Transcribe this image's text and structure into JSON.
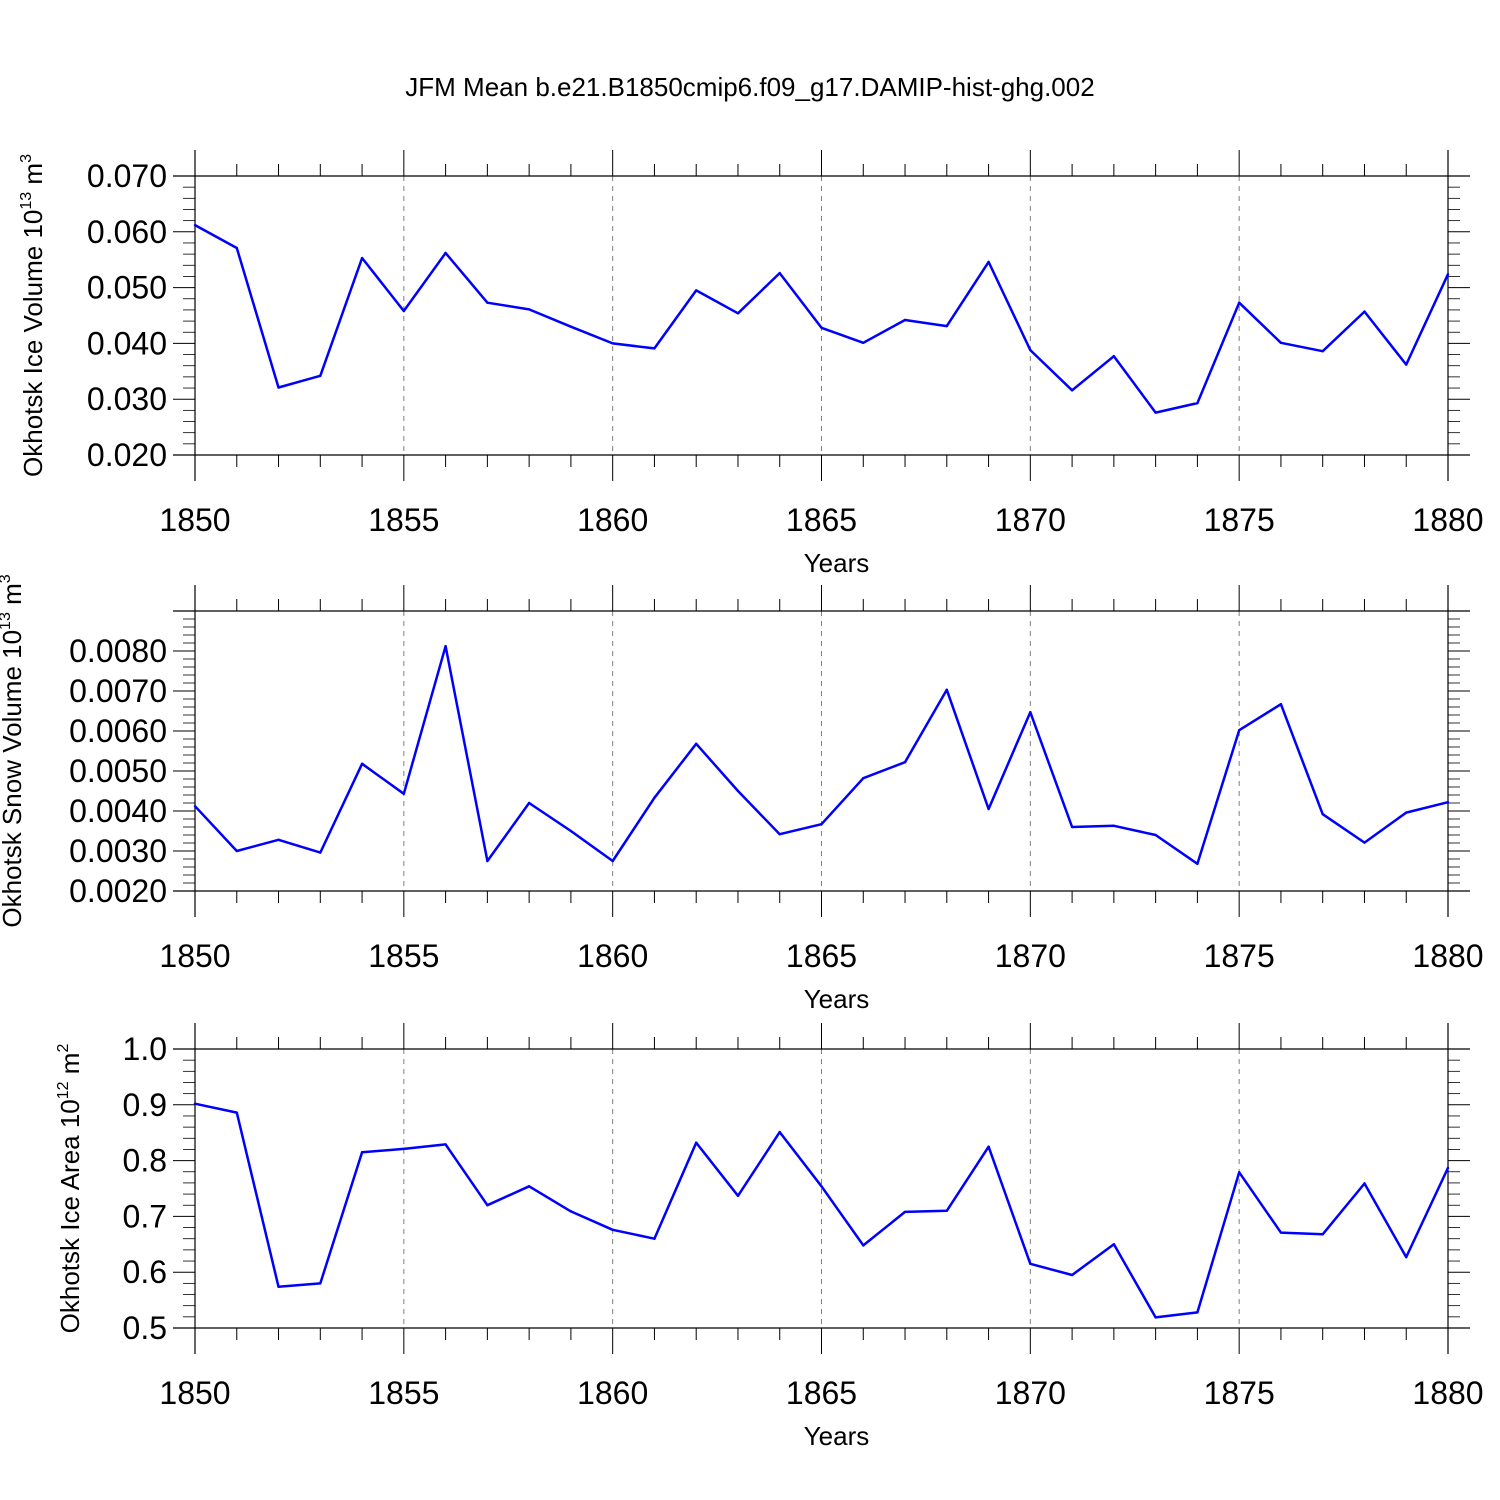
{
  "title": "JFM Mean b.e21.B1850cmip6.f09_g17.DAMIP-hist-ghg.002",
  "colors": {
    "line": "#0000ff",
    "axis": "#000000",
    "grid": "#808080"
  },
  "chart_data": [
    {
      "type": "line",
      "name": "ice-volume",
      "ylabel": {
        "base": "Okhotsk Ice Volume 10",
        "exp": "13",
        "unit": " m",
        "unit_exp": "3"
      },
      "xlabel": "Years",
      "xlim": [
        1850,
        1880
      ],
      "ylim": [
        0.02,
        0.07
      ],
      "xticks": [
        1850,
        1855,
        1860,
        1865,
        1870,
        1875,
        1880
      ],
      "xtick_labels": [
        "1850",
        "1855",
        "1860",
        "1865",
        "1870",
        "1875",
        "1880"
      ],
      "yticks": [
        0.02,
        0.03,
        0.04,
        0.05,
        0.06,
        0.07
      ],
      "ytick_labels": [
        "0.020",
        "0.030",
        "0.040",
        "0.050",
        "0.060",
        "0.070"
      ],
      "x": [
        1850,
        1851,
        1852,
        1853,
        1854,
        1855,
        1856,
        1857,
        1858,
        1859,
        1860,
        1861,
        1862,
        1863,
        1864,
        1865,
        1866,
        1867,
        1868,
        1869,
        1870,
        1871,
        1872,
        1873,
        1874,
        1875,
        1876,
        1877,
        1878,
        1879,
        1880
      ],
      "values": [
        0.0612,
        0.0571,
        0.0321,
        0.0342,
        0.0553,
        0.0458,
        0.0562,
        0.0473,
        0.0461,
        0.043,
        0.04,
        0.0391,
        0.0495,
        0.0454,
        0.0526,
        0.0428,
        0.0401,
        0.0442,
        0.0431,
        0.0546,
        0.0388,
        0.0316,
        0.0377,
        0.0276,
        0.0293,
        0.0473,
        0.0401,
        0.0386,
        0.0457,
        0.0362,
        0.0524
      ]
    },
    {
      "type": "line",
      "name": "snow-volume",
      "ylabel": {
        "base": "Okhotsk Snow Volume 10",
        "exp": "13",
        "unit": " m",
        "unit_exp": "3"
      },
      "xlabel": "Years",
      "xlim": [
        1850,
        1880
      ],
      "ylim": [
        0.002,
        0.009
      ],
      "xticks": [
        1850,
        1855,
        1860,
        1865,
        1870,
        1875,
        1880
      ],
      "xtick_labels": [
        "1850",
        "1855",
        "1860",
        "1865",
        "1870",
        "1875",
        "1880"
      ],
      "yticks": [
        0.002,
        0.003,
        0.004,
        0.005,
        0.006,
        0.007,
        0.008
      ],
      "ytick_labels": [
        "0.0020",
        "0.0030",
        "0.0040",
        "0.0050",
        "0.0060",
        "0.0070",
        "0.0080"
      ],
      "x": [
        1850,
        1851,
        1852,
        1853,
        1854,
        1855,
        1856,
        1857,
        1858,
        1859,
        1860,
        1861,
        1862,
        1863,
        1864,
        1865,
        1866,
        1867,
        1868,
        1869,
        1870,
        1871,
        1872,
        1873,
        1874,
        1875,
        1876,
        1877,
        1878,
        1879,
        1880
      ],
      "values": [
        0.00412,
        0.003,
        0.00328,
        0.00296,
        0.00518,
        0.00443,
        0.00812,
        0.00275,
        0.0042,
        0.0035,
        0.00275,
        0.00433,
        0.00568,
        0.0045,
        0.00342,
        0.00367,
        0.00482,
        0.00522,
        0.00703,
        0.00405,
        0.00647,
        0.0036,
        0.00363,
        0.0034,
        0.00268,
        0.00602,
        0.00667,
        0.00392,
        0.00321,
        0.00396,
        0.00422
      ]
    },
    {
      "type": "line",
      "name": "ice-area",
      "ylabel": {
        "base": "Okhotsk Ice Area 10",
        "exp": "12",
        "unit": " m",
        "unit_exp": "2"
      },
      "xlabel": "Years",
      "xlim": [
        1850,
        1880
      ],
      "ylim": [
        0.5,
        1.0
      ],
      "xticks": [
        1850,
        1855,
        1860,
        1865,
        1870,
        1875,
        1880
      ],
      "xtick_labels": [
        "1850",
        "1855",
        "1860",
        "1865",
        "1870",
        "1875",
        "1880"
      ],
      "yticks": [
        0.5,
        0.6,
        0.7,
        0.8,
        0.9,
        1.0
      ],
      "ytick_labels": [
        "0.5",
        "0.6",
        "0.7",
        "0.8",
        "0.9",
        "1.0"
      ],
      "x": [
        1850,
        1851,
        1852,
        1853,
        1854,
        1855,
        1856,
        1857,
        1858,
        1859,
        1860,
        1861,
        1862,
        1863,
        1864,
        1865,
        1866,
        1867,
        1868,
        1869,
        1870,
        1871,
        1872,
        1873,
        1874,
        1875,
        1876,
        1877,
        1878,
        1879,
        1880
      ],
      "values": [
        0.902,
        0.886,
        0.574,
        0.58,
        0.815,
        0.821,
        0.829,
        0.72,
        0.754,
        0.709,
        0.676,
        0.66,
        0.832,
        0.737,
        0.851,
        0.754,
        0.648,
        0.708,
        0.71,
        0.825,
        0.615,
        0.595,
        0.65,
        0.519,
        0.528,
        0.779,
        0.671,
        0.668,
        0.759,
        0.627,
        0.787
      ]
    }
  ]
}
